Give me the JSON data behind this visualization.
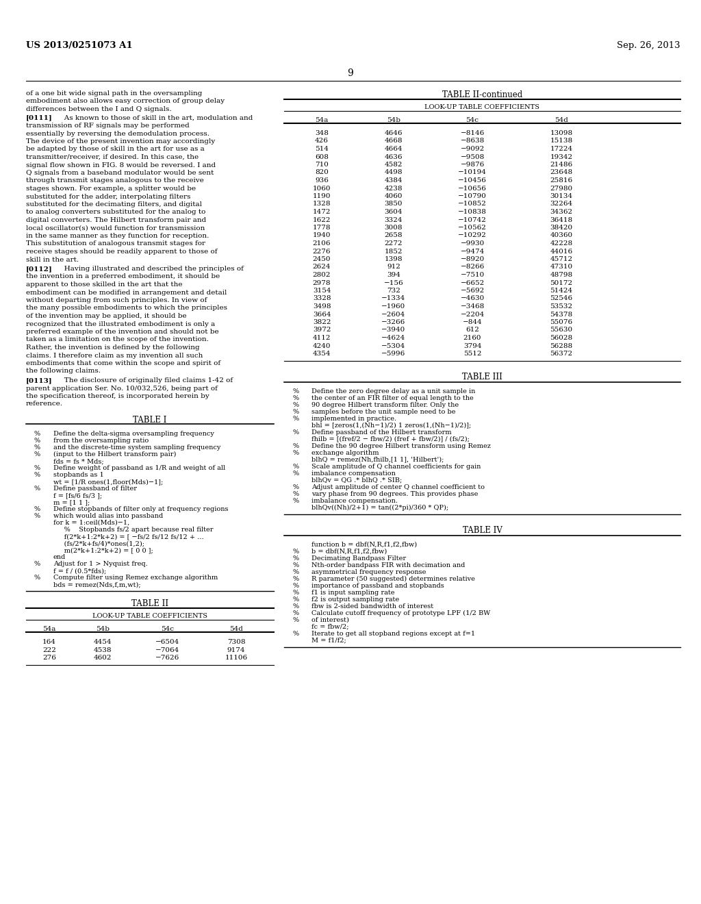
{
  "bg_color": "#ffffff",
  "header_left": "US 2013/0251073 A1",
  "header_right": "Sep. 26, 2013",
  "page_number": "9",
  "left_text_paragraphs": [
    {
      "tag": "",
      "text": "of a one bit wide signal path in the oversampling embodiment also allows easy correction of group delay differences between the I and Q signals."
    },
    {
      "tag": "[0111]",
      "text": "As known to those of skill in the art, modulation and transmission of RF signals may be performed essentially by reversing the demodulation process. The device of the present invention may accordingly be adapted by those of skill in the art for use as a transmitter/receiver, if desired. In this case, the signal flow shown in FIG. 8 would be reversed. I and Q signals from a baseband modulator would be sent through transmit stages analogous to the receive stages shown. For example, a splitter would be substituted for the adder, interpolating filters substituted for the decimating filters, and digital to analog converters substituted for the analog to digital converters. The Hilbert transform pair and local oscillator(s) would function for transmission in the same manner as they function for reception. This substitution of analogous transmit stages for receive stages should be readily apparent to those of skill in the art."
    },
    {
      "tag": "[0112]",
      "text": "Having illustrated and described the principles of the invention in a preferred embodiment, it should be apparent to those skilled in the art that the embodiment can be modified in arrangement and detail without departing from such principles. In view of the many possible embodiments to which the principles of the invention may be applied, it should be recognized that the illustrated embodiment is only a preferred example of the invention and should not be taken as a limitation on the scope of the invention. Rather, the invention is defined by the following claims. I therefore claim as my invention all such embodiments that come within the scope and spirit of the following claims."
    },
    {
      "tag": "[0113]",
      "text": "The disclosure of originally filed claims 1-42 of parent application Ser. No. 10/032,526, being part of the specification thereof, is incorporated herein by reference."
    }
  ],
  "table1_title": "TABLE I",
  "table1_code": [
    [
      "%",
      "Define the delta-sigma oversampling frequency"
    ],
    [
      "%",
      "from the oversampling ratio"
    ],
    [
      "%",
      "and the discrete-time system sampling frequency"
    ],
    [
      "%",
      "(input to the Hilbert transform pair)"
    ],
    [
      "",
      "fds = fs * Mds;"
    ],
    [
      "%",
      "Define weight of passband as 1/R and weight of all"
    ],
    [
      "%",
      "stopbands as 1"
    ],
    [
      "",
      "wt = [1/R ones(1,floor(Mds)−1];"
    ],
    [
      "%",
      "Define passband of filter"
    ],
    [
      "",
      "f = [fs/6 fs/3 ];"
    ],
    [
      "",
      "m = [1 1 ];"
    ],
    [
      "%",
      "Define stopbands of filter only at frequency regions"
    ],
    [
      "%",
      "which would alias into passband"
    ],
    [
      "",
      "for k = 1:ceil(Mds)−1,"
    ],
    [
      "",
      "     %    Stopbands fs/2 apart because real filter"
    ],
    [
      "",
      "     f(2*k+1:2*k+2) = [ −fs/2 fs/12 fs/12 + ..."
    ],
    [
      "",
      "     (fs/2*k+fs/4)*ones(1,2);"
    ],
    [
      "",
      "     m(2*k+1:2*k+2) = [ 0 0 ];"
    ],
    [
      "",
      "end"
    ],
    [
      "%",
      "Adjust for 1 > Nyquist freq."
    ],
    [
      "",
      "f = f / (0.5*fds);"
    ],
    [
      "%",
      "Compute filter using Remez exchange algorithm"
    ],
    [
      "",
      "bds = remez(Nds,f,m,wt);"
    ]
  ],
  "table2_title": "TABLE II",
  "table2_subtitle": "LOOK-UP TABLE COEFFICIENTS",
  "table2_headers": [
    "54a",
    "54b",
    "54c",
    "54d"
  ],
  "table2_data": [
    [
      164,
      4454,
      -6504,
      7308
    ],
    [
      222,
      4538,
      -7064,
      9174
    ],
    [
      276,
      4602,
      -7626,
      11106
    ]
  ],
  "table2cont_title": "TABLE II-continued",
  "table2cont_subtitle": "LOOK-UP TABLE COEFFICIENTS",
  "table2cont_headers": [
    "54a",
    "54b",
    "54c",
    "54d"
  ],
  "table2cont_data": [
    [
      348,
      4646,
      -8146,
      13098
    ],
    [
      426,
      4668,
      -8638,
      15138
    ],
    [
      514,
      4664,
      -9092,
      17224
    ],
    [
      608,
      4636,
      -9508,
      19342
    ],
    [
      710,
      4582,
      -9876,
      21486
    ],
    [
      820,
      4498,
      -10194,
      23648
    ],
    [
      936,
      4384,
      -10456,
      25816
    ],
    [
      1060,
      4238,
      -10656,
      27980
    ],
    [
      1190,
      4060,
      -10790,
      30134
    ],
    [
      1328,
      3850,
      -10852,
      32264
    ],
    [
      1472,
      3604,
      -10838,
      34362
    ],
    [
      1622,
      3324,
      -10742,
      36418
    ],
    [
      1778,
      3008,
      -10562,
      38420
    ],
    [
      1940,
      2658,
      -10292,
      40360
    ],
    [
      2106,
      2272,
      -9930,
      42228
    ],
    [
      2276,
      1852,
      -9474,
      44016
    ],
    [
      2450,
      1398,
      -8920,
      45712
    ],
    [
      2624,
      912,
      -8266,
      47310
    ],
    [
      2802,
      394,
      -7510,
      48798
    ],
    [
      2978,
      -156,
      -6652,
      50172
    ],
    [
      3154,
      732,
      -5692,
      51424
    ],
    [
      3328,
      -1334,
      -4630,
      52546
    ],
    [
      3498,
      -1960,
      -3468,
      53532
    ],
    [
      3664,
      -2604,
      -2204,
      54378
    ],
    [
      3822,
      -3266,
      -844,
      55076
    ],
    [
      3972,
      -3940,
      612,
      55630
    ],
    [
      4112,
      -4624,
      2160,
      56028
    ],
    [
      4240,
      -5304,
      3794,
      56288
    ],
    [
      4354,
      -5996,
      5512,
      56372
    ]
  ],
  "table3_title": "TABLE III",
  "table3_code": [
    [
      "%",
      "Define the zero degree delay as a unit sample in"
    ],
    [
      "%",
      "the center of an FIR filter of equal length to the"
    ],
    [
      "%",
      "90 degree Hilbert transform filter. Only the"
    ],
    [
      "%",
      "samples before the unit sample need to be"
    ],
    [
      "%",
      "implemented in practice."
    ],
    [
      "",
      "bhl = [zeros(1,(Nh−1)/2) 1 zeros(1,(Nh−1)/2)];"
    ],
    [
      "%",
      "Define passband of the Hilbert transform"
    ],
    [
      "",
      "fhilb = [(fref/2 − fbw/2) (fref + fbw/2)] / (fs/2);"
    ],
    [
      "%",
      "Define the 90 degree Hilbert transform using Remez"
    ],
    [
      "%",
      "exchange algorithm"
    ],
    [
      "",
      "blhQ = remez(Nh,fhilb,[1 1], 'Hilbert');"
    ],
    [
      "%",
      "Scale amplitude of Q channel coefficients for gain"
    ],
    [
      "%",
      "imbalance compensation"
    ],
    [
      "",
      "blhQv = QG .* blhQ .* SIB;"
    ],
    [
      "%",
      "Adjust amplitude of center Q channel coefficient to"
    ],
    [
      "%",
      "vary phase from 90 degrees. This provides phase"
    ],
    [
      "%",
      "imbalance compensation."
    ],
    [
      "",
      "blhQv((Nh)/2+1) = tan((2*pi)/360 * QP);"
    ]
  ],
  "table4_title": "TABLE IV",
  "table4_code": [
    [
      "",
      "function b = dbf(N,R,f1,f2,fbw)"
    ],
    [
      "%",
      "b = dbf(N,R,f1,f2,fbw)"
    ],
    [
      "%",
      "Decimating Bandpass Filter"
    ],
    [
      "%",
      "Nth-order bandpass FIR with decimation and"
    ],
    [
      "%",
      "asymmetrical frequency response"
    ],
    [
      "%",
      "R parameter (50 suggested) determines relative"
    ],
    [
      "%",
      "importance of passband and stopbands"
    ],
    [
      "%",
      "f1 is input sampling rate"
    ],
    [
      "%",
      "f2 is output sampling rate"
    ],
    [
      "%",
      "fbw is 2-sided bandwidth of interest"
    ],
    [
      "%",
      "Calculate cutoff frequency of prototype LPF (1/2 BW"
    ],
    [
      "%",
      "of interest)"
    ],
    [
      "",
      "fc = fbw/2;"
    ],
    [
      "%",
      "Iterate to get all stopband regions except at f=1"
    ],
    [
      "",
      "M = f1/f2;"
    ]
  ]
}
